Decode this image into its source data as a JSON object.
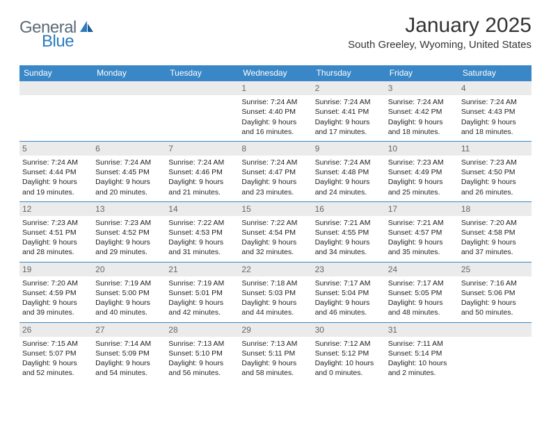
{
  "logo": {
    "part1": "General",
    "part2": "Blue"
  },
  "title": "January 2025",
  "location": "South Greeley, Wyoming, United States",
  "header_bg": "#3a87c7",
  "daynum_bg": "#ebebeb",
  "border_color": "#3a87c7",
  "weekdays": [
    "Sunday",
    "Monday",
    "Tuesday",
    "Wednesday",
    "Thursday",
    "Friday",
    "Saturday"
  ],
  "weeks": [
    [
      null,
      null,
      null,
      {
        "n": "1",
        "sr": "7:24 AM",
        "ss": "4:40 PM",
        "dh": "9",
        "dm": "16"
      },
      {
        "n": "2",
        "sr": "7:24 AM",
        "ss": "4:41 PM",
        "dh": "9",
        "dm": "17"
      },
      {
        "n": "3",
        "sr": "7:24 AM",
        "ss": "4:42 PM",
        "dh": "9",
        "dm": "18"
      },
      {
        "n": "4",
        "sr": "7:24 AM",
        "ss": "4:43 PM",
        "dh": "9",
        "dm": "18"
      }
    ],
    [
      {
        "n": "5",
        "sr": "7:24 AM",
        "ss": "4:44 PM",
        "dh": "9",
        "dm": "19"
      },
      {
        "n": "6",
        "sr": "7:24 AM",
        "ss": "4:45 PM",
        "dh": "9",
        "dm": "20"
      },
      {
        "n": "7",
        "sr": "7:24 AM",
        "ss": "4:46 PM",
        "dh": "9",
        "dm": "21"
      },
      {
        "n": "8",
        "sr": "7:24 AM",
        "ss": "4:47 PM",
        "dh": "9",
        "dm": "23"
      },
      {
        "n": "9",
        "sr": "7:24 AM",
        "ss": "4:48 PM",
        "dh": "9",
        "dm": "24"
      },
      {
        "n": "10",
        "sr": "7:23 AM",
        "ss": "4:49 PM",
        "dh": "9",
        "dm": "25"
      },
      {
        "n": "11",
        "sr": "7:23 AM",
        "ss": "4:50 PM",
        "dh": "9",
        "dm": "26"
      }
    ],
    [
      {
        "n": "12",
        "sr": "7:23 AM",
        "ss": "4:51 PM",
        "dh": "9",
        "dm": "28"
      },
      {
        "n": "13",
        "sr": "7:23 AM",
        "ss": "4:52 PM",
        "dh": "9",
        "dm": "29"
      },
      {
        "n": "14",
        "sr": "7:22 AM",
        "ss": "4:53 PM",
        "dh": "9",
        "dm": "31"
      },
      {
        "n": "15",
        "sr": "7:22 AM",
        "ss": "4:54 PM",
        "dh": "9",
        "dm": "32"
      },
      {
        "n": "16",
        "sr": "7:21 AM",
        "ss": "4:55 PM",
        "dh": "9",
        "dm": "34"
      },
      {
        "n": "17",
        "sr": "7:21 AM",
        "ss": "4:57 PM",
        "dh": "9",
        "dm": "35"
      },
      {
        "n": "18",
        "sr": "7:20 AM",
        "ss": "4:58 PM",
        "dh": "9",
        "dm": "37"
      }
    ],
    [
      {
        "n": "19",
        "sr": "7:20 AM",
        "ss": "4:59 PM",
        "dh": "9",
        "dm": "39"
      },
      {
        "n": "20",
        "sr": "7:19 AM",
        "ss": "5:00 PM",
        "dh": "9",
        "dm": "40"
      },
      {
        "n": "21",
        "sr": "7:19 AM",
        "ss": "5:01 PM",
        "dh": "9",
        "dm": "42"
      },
      {
        "n": "22",
        "sr": "7:18 AM",
        "ss": "5:03 PM",
        "dh": "9",
        "dm": "44"
      },
      {
        "n": "23",
        "sr": "7:17 AM",
        "ss": "5:04 PM",
        "dh": "9",
        "dm": "46"
      },
      {
        "n": "24",
        "sr": "7:17 AM",
        "ss": "5:05 PM",
        "dh": "9",
        "dm": "48"
      },
      {
        "n": "25",
        "sr": "7:16 AM",
        "ss": "5:06 PM",
        "dh": "9",
        "dm": "50"
      }
    ],
    [
      {
        "n": "26",
        "sr": "7:15 AM",
        "ss": "5:07 PM",
        "dh": "9",
        "dm": "52"
      },
      {
        "n": "27",
        "sr": "7:14 AM",
        "ss": "5:09 PM",
        "dh": "9",
        "dm": "54"
      },
      {
        "n": "28",
        "sr": "7:13 AM",
        "ss": "5:10 PM",
        "dh": "9",
        "dm": "56"
      },
      {
        "n": "29",
        "sr": "7:13 AM",
        "ss": "5:11 PM",
        "dh": "9",
        "dm": "58"
      },
      {
        "n": "30",
        "sr": "7:12 AM",
        "ss": "5:12 PM",
        "dh": "10",
        "dm": "0"
      },
      {
        "n": "31",
        "sr": "7:11 AM",
        "ss": "5:14 PM",
        "dh": "10",
        "dm": "2"
      },
      null
    ]
  ],
  "labels": {
    "sunrise": "Sunrise:",
    "sunset": "Sunset:",
    "daylight": "Daylight:",
    "hours": "hours",
    "and": "and",
    "minutes": "minutes."
  }
}
